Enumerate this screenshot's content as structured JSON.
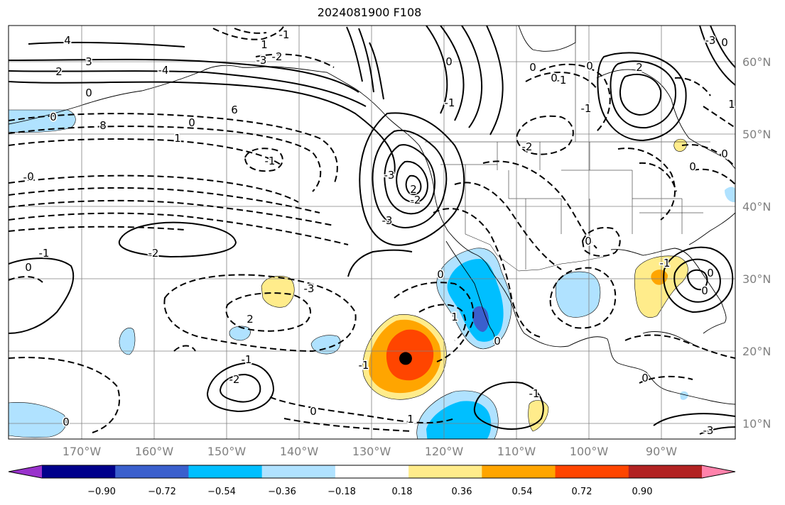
{
  "title": "2024081900 F108",
  "map": {
    "lon_ticks": [
      "170°W",
      "160°W",
      "150°W",
      "140°W",
      "130°W",
      "120°W",
      "110°W",
      "100°W",
      "90°W"
    ],
    "lat_ticks": [
      "60°N",
      "50°N",
      "40°N",
      "30°N",
      "20°N",
      "10°N"
    ],
    "storm_marker": {
      "lon": -125.2,
      "lat": 18.9
    }
  },
  "colorbar": {
    "colors": [
      "#9932CC",
      "#00008B",
      "#3A5FCD",
      "#00BFFF",
      "#B0E2FF",
      "#FFFFFF",
      "#FFEC8B",
      "#FFA500",
      "#FF4500",
      "#B22222",
      "#FF82AB"
    ],
    "tick_labels": [
      "−0.90",
      "−0.72",
      "−0.54",
      "−0.36",
      "−0.18",
      "0.18",
      "0.36",
      "0.54",
      "0.72",
      "0.90"
    ]
  },
  "contour_labels": [
    "4",
    "3",
    "2",
    "0",
    "1",
    "-1",
    "-2",
    "-3",
    "-4",
    "6",
    "8",
    "0",
    "1",
    "-1",
    "-2",
    "-3",
    "2",
    "-2",
    "-3",
    "0",
    "-1",
    "0",
    "-1",
    "-2",
    "0",
    "-3",
    "2",
    "1",
    "-1",
    "-2",
    "-1",
    "0",
    "1",
    "0",
    "0",
    "-1",
    "0",
    "-1",
    "2",
    "-2",
    "0",
    "-1",
    "0",
    "0",
    "-3",
    "0",
    "1",
    "0",
    "0",
    "0",
    "-1",
    "0",
    "0",
    "0",
    "-3",
    "0"
  ]
}
